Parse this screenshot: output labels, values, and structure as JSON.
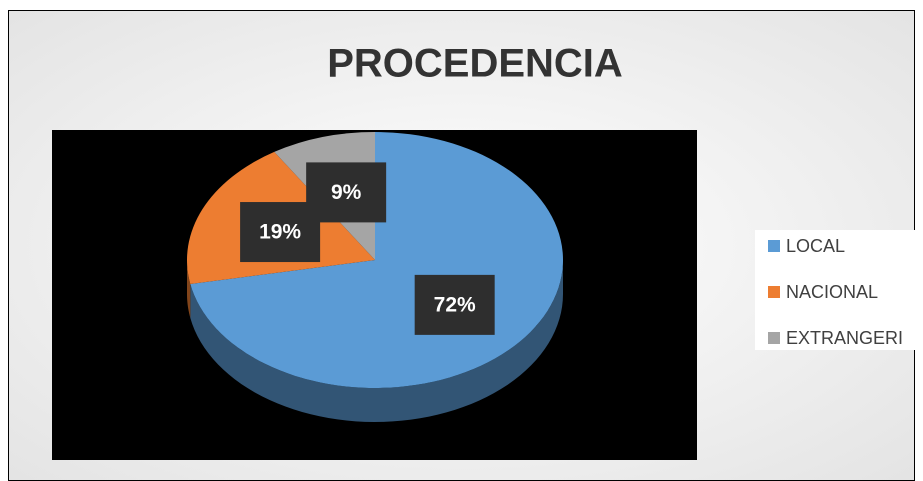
{
  "chart_data": {
    "type": "pie",
    "title": "PROCEDENCIA",
    "categories": [
      "LOCAL",
      "NACIONAL",
      "EXTRANGERI"
    ],
    "values": [
      72,
      19,
      9
    ],
    "value_labels": [
      "72%",
      "19%",
      "9%"
    ],
    "colors": [
      "#5b9bd5",
      "#ed7d31",
      "#a5a5a5"
    ],
    "legend": "right"
  }
}
